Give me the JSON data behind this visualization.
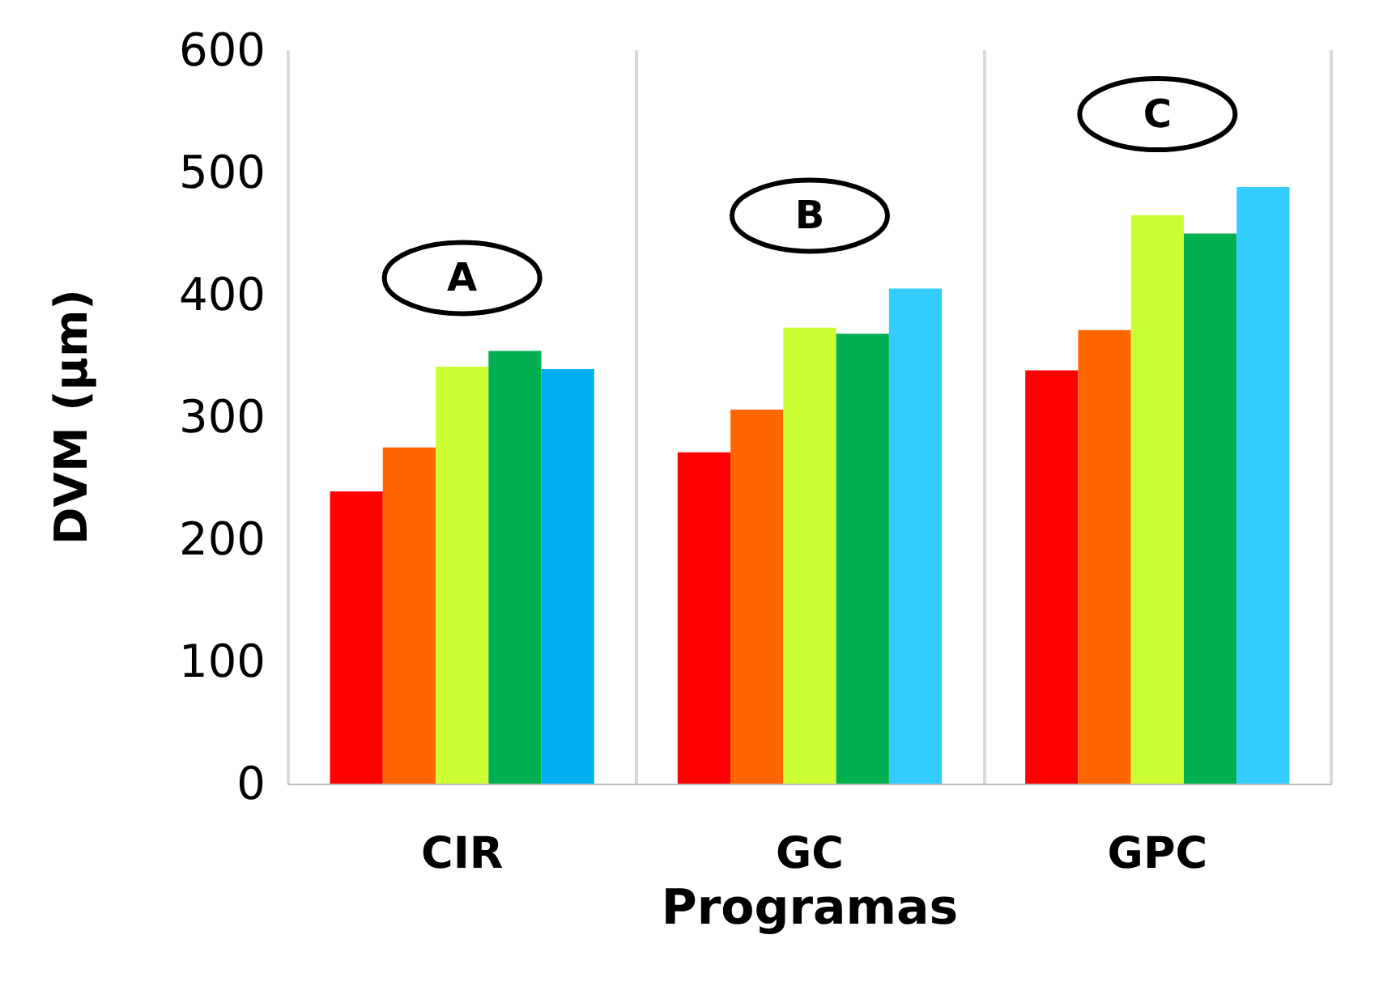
{
  "chart_data": {
    "type": "bar",
    "xlabel": "Programas",
    "ylabel": "DVM (µm)",
    "categories": [
      "CIR",
      "GC",
      "GPC"
    ],
    "series": [
      {
        "color": "#ff0000",
        "values": [
          239,
          271,
          338
        ]
      },
      {
        "color": "#ff6600",
        "values": [
          275,
          306,
          371
        ]
      },
      {
        "color": "#ccff33",
        "values": [
          341,
          373,
          465
        ]
      },
      {
        "color": "#00b050",
        "values": [
          354,
          368,
          450
        ]
      },
      {
        "color": "#33ccff",
        "colors": [
          "#00b0f0",
          "#33ccff",
          "#33ccff"
        ],
        "values": [
          339,
          405,
          488
        ]
      }
    ],
    "ylim": [
      0,
      600
    ],
    "yticks": [
      0,
      100,
      200,
      300,
      400,
      500,
      600
    ],
    "grid": "x",
    "annotations": [
      "A",
      "B",
      "C"
    ]
  }
}
